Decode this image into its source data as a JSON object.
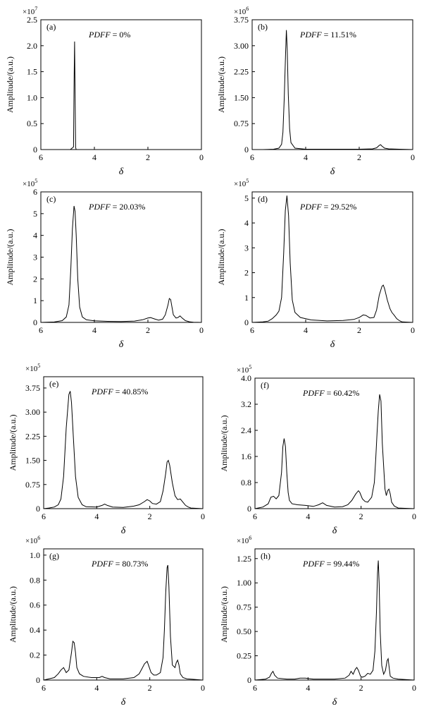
{
  "chart_data": [
    {
      "type": "line",
      "panel": "(a)",
      "multiplier_base": "×10",
      "multiplier_exp": "7",
      "pdff_label": "PDFF",
      "pdff_value": " = 0%",
      "xlabel": "δ",
      "ylabel": "Amplitude/(a.u.)",
      "xlim": [
        6,
        0
      ],
      "ylim": [
        0,
        2.5
      ],
      "xticks": [
        6,
        4,
        2,
        0
      ],
      "xtick_labels": [
        "6",
        "4",
        "2",
        "0"
      ],
      "yticks": [
        0,
        0.5,
        1.0,
        1.5,
        2.0,
        2.5
      ],
      "ytick_labels": [
        "0",
        "0.5",
        "1.0",
        "1.5",
        "2.0",
        "2.5"
      ],
      "x": [
        6,
        4.9,
        4.78,
        4.76,
        4.74,
        4.72,
        4.7,
        4.68,
        4.6,
        0
      ],
      "y": [
        0,
        0,
        0.05,
        1.2,
        2.08,
        1.1,
        0.04,
        0,
        0,
        0
      ]
    },
    {
      "type": "line",
      "panel": "(b)",
      "multiplier_base": "×10",
      "multiplier_exp": "6",
      "pdff_label": "PDFF",
      "pdff_value": " = 11.51%",
      "xlabel": "δ",
      "ylabel": "Amplitude/(a.u.)",
      "xlim": [
        6,
        0
      ],
      "ylim": [
        0,
        3.75
      ],
      "xticks": [
        6,
        4,
        2,
        0
      ],
      "xtick_labels": [
        "6",
        "4",
        "2",
        "0"
      ],
      "yticks": [
        0,
        0.75,
        1.5,
        2.25,
        3.0,
        3.75
      ],
      "ytick_labels": [
        "0",
        "0.75",
        "1.50",
        "2.25",
        "3.00",
        "3.75"
      ],
      "x": [
        6,
        5.6,
        5.2,
        5.0,
        4.9,
        4.85,
        4.8,
        4.75,
        4.72,
        4.69,
        4.65,
        4.6,
        4.55,
        4.4,
        4.0,
        2.0,
        1.5,
        1.35,
        1.25,
        1.2,
        1.15,
        1.05,
        0.9,
        0.5,
        0
      ],
      "y": [
        0,
        0,
        0.01,
        0.04,
        0.15,
        0.5,
        1.5,
        2.8,
        3.45,
        2.9,
        1.6,
        0.6,
        0.2,
        0.04,
        0.01,
        0.01,
        0.02,
        0.05,
        0.12,
        0.14,
        0.1,
        0.04,
        0.02,
        0.01,
        0
      ]
    },
    {
      "type": "line",
      "panel": "(c)",
      "multiplier_base": "×10",
      "multiplier_exp": "5",
      "pdff_label": "PDFF",
      "pdff_value": " = 20.03%",
      "xlabel": "δ",
      "ylabel": "Amplitude/(a.u.)",
      "xlim": [
        6,
        0
      ],
      "ylim": [
        0,
        6
      ],
      "xticks": [
        6,
        4,
        2,
        0
      ],
      "xtick_labels": [
        "6",
        "4",
        "2",
        "0"
      ],
      "yticks": [
        0,
        1,
        2,
        3,
        4,
        5,
        6
      ],
      "ytick_labels": [
        "0",
        "1",
        "2",
        "3",
        "4",
        "5",
        "6"
      ],
      "x": [
        6,
        5.5,
        5.2,
        5.05,
        4.95,
        4.88,
        4.82,
        4.76,
        4.72,
        4.68,
        4.62,
        4.55,
        4.45,
        4.3,
        4.0,
        3.5,
        3.0,
        2.5,
        2.2,
        2.0,
        1.9,
        1.75,
        1.6,
        1.45,
        1.35,
        1.25,
        1.2,
        1.15,
        1.1,
        1.05,
        0.95,
        0.88,
        0.8,
        0.72,
        0.6,
        0.45,
        0.3,
        0
      ],
      "y": [
        0,
        0.02,
        0.08,
        0.25,
        0.8,
        2.5,
        4.3,
        5.35,
        5.1,
        4.0,
        2.0,
        0.7,
        0.25,
        0.12,
        0.07,
        0.05,
        0.04,
        0.06,
        0.12,
        0.2,
        0.22,
        0.16,
        0.1,
        0.15,
        0.35,
        0.8,
        1.1,
        1.05,
        0.7,
        0.35,
        0.2,
        0.22,
        0.3,
        0.2,
        0.08,
        0.03,
        0.01,
        0
      ]
    },
    {
      "type": "line",
      "panel": "(d)",
      "multiplier_base": "×10",
      "multiplier_exp": "5",
      "pdff_label": "PDFF",
      "pdff_value": " = 29.52%",
      "xlabel": "δ",
      "ylabel": "Amplitude/(a.u.)",
      "xlim": [
        6,
        0
      ],
      "ylim": [
        0,
        5.25
      ],
      "xticks": [
        6,
        4,
        2,
        0
      ],
      "xtick_labels": [
        "6",
        "4",
        "2",
        "0"
      ],
      "yticks": [
        0,
        1,
        2,
        3,
        4,
        5
      ],
      "ytick_labels": [
        "0",
        "1",
        "2",
        "3",
        "4",
        "5"
      ],
      "x": [
        6,
        5.6,
        5.4,
        5.25,
        5.1,
        5.0,
        4.9,
        4.82,
        4.76,
        4.7,
        4.64,
        4.58,
        4.5,
        4.4,
        4.2,
        3.8,
        3.2,
        2.6,
        2.2,
        2.0,
        1.85,
        1.75,
        1.6,
        1.45,
        1.35,
        1.25,
        1.15,
        1.1,
        1.05,
        0.95,
        0.85,
        0.78,
        0.7,
        0.6,
        0.5,
        0.4,
        0
      ],
      "y": [
        0,
        0.02,
        0.05,
        0.15,
        0.3,
        0.45,
        1.0,
        2.8,
        4.5,
        5.1,
        4.3,
        2.4,
        0.9,
        0.4,
        0.2,
        0.1,
        0.06,
        0.08,
        0.12,
        0.2,
        0.3,
        0.28,
        0.18,
        0.2,
        0.5,
        1.1,
        1.45,
        1.5,
        1.35,
        0.9,
        0.55,
        0.4,
        0.3,
        0.15,
        0.07,
        0.02,
        0
      ]
    },
    {
      "type": "line",
      "panel": "(e)",
      "multiplier_base": "×10",
      "multiplier_exp": "5",
      "pdff_label": "PDFF",
      "pdff_value": " = 40.85%",
      "xlabel": "δ",
      "ylabel": "Amplitude/(a.u.)",
      "xlim": [
        6,
        0
      ],
      "ylim": [
        0,
        4.1
      ],
      "xticks": [
        6,
        4,
        2,
        0
      ],
      "xtick_labels": [
        "6",
        "4",
        "2",
        "0"
      ],
      "yticks": [
        0,
        0.75,
        1.5,
        2.25,
        3.0,
        3.75
      ],
      "ytick_labels": [
        "0",
        "0.75",
        "1.50",
        "2.25",
        "3.00",
        "3.75"
      ],
      "x": [
        6,
        5.8,
        5.6,
        5.45,
        5.35,
        5.25,
        5.15,
        5.05,
        5.0,
        4.95,
        4.88,
        4.8,
        4.7,
        4.55,
        4.4,
        4.0,
        3.8,
        3.7,
        3.6,
        3.4,
        3.0,
        2.6,
        2.4,
        2.2,
        2.1,
        2.0,
        1.9,
        1.75,
        1.6,
        1.5,
        1.4,
        1.35,
        1.3,
        1.25,
        1.15,
        1.05,
        0.95,
        0.85,
        0.75,
        0.65,
        0.55,
        0.45,
        0
      ],
      "y": [
        0,
        0.02,
        0.05,
        0.12,
        0.3,
        1.0,
        2.5,
        3.55,
        3.65,
        3.3,
        2.2,
        1.0,
        0.35,
        0.12,
        0.06,
        0.05,
        0.1,
        0.14,
        0.1,
        0.05,
        0.04,
        0.08,
        0.12,
        0.22,
        0.28,
        0.24,
        0.16,
        0.14,
        0.22,
        0.55,
        1.1,
        1.45,
        1.5,
        1.35,
        0.8,
        0.4,
        0.28,
        0.3,
        0.2,
        0.1,
        0.05,
        0.02,
        0
      ]
    },
    {
      "type": "line",
      "panel": "(f)",
      "multiplier_base": "×10",
      "multiplier_exp": "5",
      "pdff_label": "PDFF",
      "pdff_value": " = 60.42%",
      "xlabel": "δ",
      "ylabel": "Amplitude/(a.u.)",
      "xlim": [
        6,
        0
      ],
      "ylim": [
        0,
        4.0
      ],
      "xticks": [
        6,
        4,
        2,
        0
      ],
      "xtick_labels": [
        "6",
        "4",
        "2",
        "0"
      ],
      "yticks": [
        0,
        0.8,
        1.6,
        2.4,
        3.2,
        4.0
      ],
      "ytick_labels": [
        "0",
        "0.8",
        "1.6",
        "2.4",
        "3.2",
        "4.0"
      ],
      "x": [
        6,
        5.7,
        5.5,
        5.4,
        5.3,
        5.2,
        5.1,
        5.0,
        4.95,
        4.9,
        4.85,
        4.8,
        4.75,
        4.7,
        4.6,
        4.4,
        4.1,
        3.8,
        3.6,
        3.45,
        3.3,
        3.0,
        2.7,
        2.5,
        2.35,
        2.2,
        2.1,
        2.05,
        1.95,
        1.85,
        1.75,
        1.6,
        1.5,
        1.45,
        1.4,
        1.35,
        1.3,
        1.25,
        1.2,
        1.1,
        1.05,
        1.0,
        0.95,
        0.9,
        0.85,
        0.75,
        0.6,
        0
      ],
      "y": [
        0,
        0.05,
        0.15,
        0.35,
        0.38,
        0.3,
        0.4,
        1.1,
        1.9,
        2.15,
        1.9,
        1.1,
        0.5,
        0.25,
        0.15,
        0.12,
        0.1,
        0.07,
        0.12,
        0.18,
        0.1,
        0.05,
        0.06,
        0.12,
        0.25,
        0.45,
        0.55,
        0.5,
        0.3,
        0.22,
        0.2,
        0.35,
        0.8,
        1.5,
        2.3,
        3.0,
        3.5,
        3.3,
        2.0,
        0.6,
        0.4,
        0.55,
        0.6,
        0.45,
        0.2,
        0.08,
        0.02,
        0
      ]
    },
    {
      "type": "line",
      "panel": "(g)",
      "multiplier_base": "×10",
      "multiplier_exp": "6",
      "pdff_label": "PDFF",
      "pdff_value": " = 80.73%",
      "xlabel": "δ",
      "ylabel": "Amplitude/(a.u.)",
      "xlim": [
        6,
        0
      ],
      "ylim": [
        0,
        1.05
      ],
      "xticks": [
        6,
        4,
        2,
        0
      ],
      "xtick_labels": [
        "6",
        "4",
        "2",
        "0"
      ],
      "yticks": [
        0,
        0.2,
        0.4,
        0.6,
        0.8,
        1.0
      ],
      "ytick_labels": [
        "0",
        "0.2",
        "0.4",
        "0.6",
        "0.8",
        "1.0"
      ],
      "x": [
        6,
        5.6,
        5.45,
        5.35,
        5.25,
        5.15,
        5.05,
        4.95,
        4.9,
        4.85,
        4.8,
        4.75,
        4.65,
        4.5,
        4.2,
        3.9,
        3.8,
        3.7,
        3.5,
        3.0,
        2.6,
        2.4,
        2.3,
        2.2,
        2.1,
        2.05,
        1.95,
        1.85,
        1.75,
        1.6,
        1.5,
        1.45,
        1.4,
        1.35,
        1.32,
        1.28,
        1.22,
        1.15,
        1.05,
        1.0,
        0.95,
        0.9,
        0.85,
        0.75,
        0.6,
        0
      ],
      "y": [
        0,
        0.02,
        0.05,
        0.08,
        0.1,
        0.06,
        0.08,
        0.22,
        0.31,
        0.3,
        0.22,
        0.1,
        0.05,
        0.03,
        0.02,
        0.02,
        0.03,
        0.02,
        0.01,
        0.01,
        0.02,
        0.05,
        0.09,
        0.13,
        0.15,
        0.12,
        0.06,
        0.04,
        0.04,
        0.06,
        0.18,
        0.4,
        0.7,
        0.9,
        0.92,
        0.75,
        0.35,
        0.12,
        0.1,
        0.14,
        0.16,
        0.12,
        0.05,
        0.02,
        0.01,
        0
      ]
    },
    {
      "type": "line",
      "panel": "(h)",
      "multiplier_base": "×10",
      "multiplier_exp": "6",
      "pdff_label": "PDFF",
      "pdff_value": " = 99.44%",
      "xlabel": "δ",
      "ylabel": "Amplitude/(a.u.)",
      "xlim": [
        6,
        0
      ],
      "ylim": [
        0,
        1.35
      ],
      "xticks": [
        6,
        4,
        2,
        0
      ],
      "xtick_labels": [
        "6",
        "4",
        "2",
        "0"
      ],
      "yticks": [
        0,
        0.25,
        0.5,
        0.75,
        1.0,
        1.25
      ],
      "ytick_labels": [
        "0",
        "0.25",
        "0.50",
        "0.75",
        "1.00",
        "1.25"
      ],
      "x": [
        6,
        5.6,
        5.45,
        5.38,
        5.32,
        5.26,
        5.15,
        4.8,
        4.5,
        4.3,
        4.1,
        3.8,
        3.0,
        2.6,
        2.45,
        2.38,
        2.3,
        2.22,
        2.16,
        2.1,
        2.02,
        1.95,
        1.85,
        1.75,
        1.65,
        1.55,
        1.48,
        1.42,
        1.38,
        1.35,
        1.32,
        1.28,
        1.22,
        1.15,
        1.08,
        1.02,
        0.98,
        0.95,
        0.9,
        0.8,
        0.6,
        0
      ],
      "y": [
        0,
        0.01,
        0.03,
        0.07,
        0.09,
        0.05,
        0.02,
        0.01,
        0.01,
        0.02,
        0.02,
        0.01,
        0.01,
        0.02,
        0.05,
        0.09,
        0.06,
        0.11,
        0.13,
        0.1,
        0.04,
        0.03,
        0.04,
        0.07,
        0.06,
        0.1,
        0.3,
        0.7,
        1.1,
        1.23,
        1.0,
        0.5,
        0.15,
        0.06,
        0.1,
        0.2,
        0.22,
        0.15,
        0.04,
        0.02,
        0.01,
        0
      ]
    }
  ]
}
